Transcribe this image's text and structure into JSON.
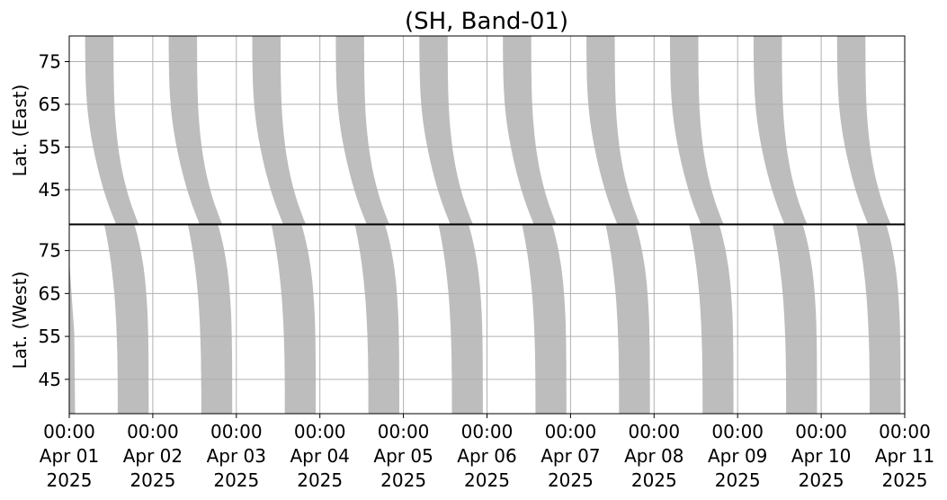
{
  "chart_data": {
    "type": "area",
    "title": "(SH, Band-01)",
    "panels": [
      {
        "name": "east",
        "ylabel": "Lat. (East)",
        "ylim": [
          37,
          81
        ],
        "inverted": false,
        "yticks": [
          45,
          55,
          65,
          75
        ],
        "ytick_labels": [
          "45",
          "55",
          "65",
          "75"
        ]
      },
      {
        "name": "west",
        "ylabel": "Lat. (West)",
        "ylim": [
          37,
          81
        ],
        "inverted": true,
        "yticks": [
          75,
          65,
          55,
          45
        ],
        "ytick_labels": [
          "75",
          "65",
          "55",
          "45"
        ]
      }
    ],
    "xlim": [
      "2025-04-01 00:00",
      "2025-04-11 00:00"
    ],
    "x_tick_labels": [
      [
        "00:00",
        "Apr 01",
        "2025"
      ],
      [
        "00:00",
        "Apr 02",
        "2025"
      ],
      [
        "00:00",
        "Apr 03",
        "2025"
      ],
      [
        "00:00",
        "Apr 04",
        "2025"
      ],
      [
        "00:00",
        "Apr 05",
        "2025"
      ],
      [
        "00:00",
        "Apr 06",
        "2025"
      ],
      [
        "00:00",
        "Apr 07",
        "2025"
      ],
      [
        "00:00",
        "Apr 08",
        "2025"
      ],
      [
        "00:00",
        "Apr 09",
        "2025"
      ],
      [
        "00:00",
        "Apr 10",
        "2025"
      ],
      [
        "00:00",
        "Apr 11",
        "2025"
      ]
    ],
    "grid": true,
    "fill_color": "#bdbdbd",
    "east_bands_left_edge_days": [
      0.17,
      1.17,
      2.17,
      3.17,
      4.17,
      5.17,
      6.17,
      7.17,
      8.17,
      9.17
    ],
    "east_bands_right_edge_days": [
      0.57,
      1.57,
      2.57,
      3.57,
      4.57,
      5.57,
      6.57,
      7.57,
      8.57,
      9.57
    ],
    "west_bands_left_edge_days": [
      0.5,
      1.5,
      2.5,
      3.5,
      4.5,
      5.5,
      6.5,
      7.5,
      8.5,
      9.5
    ],
    "west_bands_right_edge_days": [
      0.95,
      1.95,
      2.95,
      3.95,
      4.95,
      5.95,
      6.95,
      7.95,
      8.95,
      9.95
    ]
  }
}
